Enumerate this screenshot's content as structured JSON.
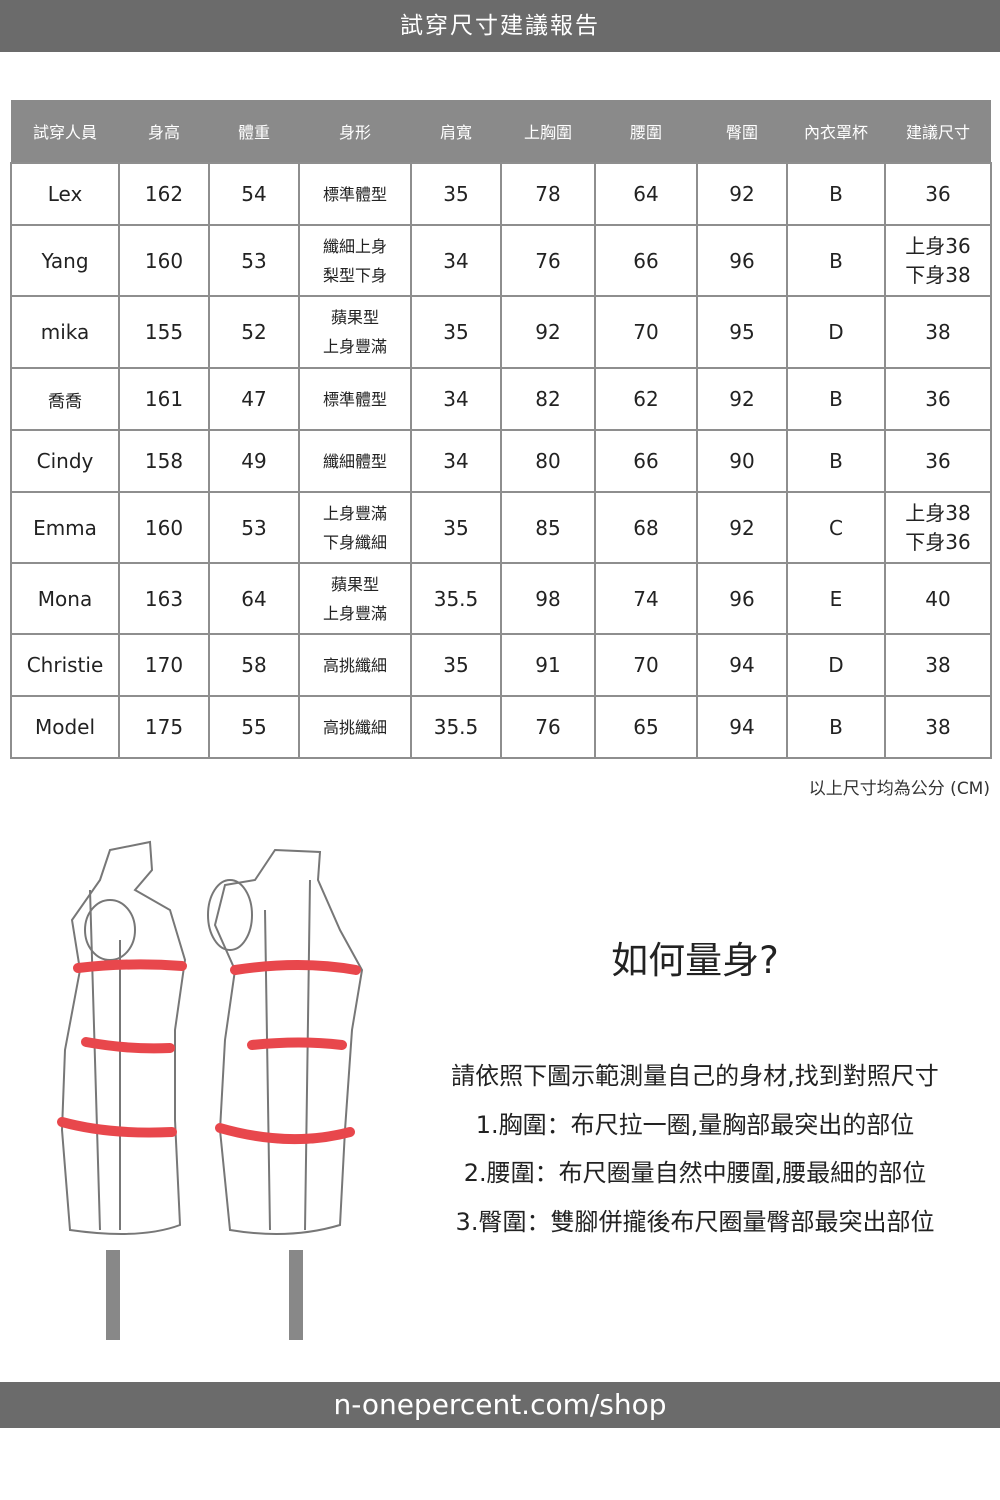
{
  "header": {
    "title": "試穿尺寸建議報告"
  },
  "table": {
    "columns": [
      "試穿人員",
      "身高",
      "體重",
      "身形",
      "肩寬",
      "上胸圍",
      "腰圍",
      "臀圍",
      "內衣罩杯",
      "建議尺寸"
    ],
    "rows": [
      {
        "name": "Lex",
        "height": "162",
        "weight": "54",
        "shape": [
          "標準體型"
        ],
        "shoulder": "35",
        "chest": "78",
        "waist": "64",
        "hip": "92",
        "cup": "B",
        "size": [
          "36"
        ]
      },
      {
        "name": "Yang",
        "height": "160",
        "weight": "53",
        "shape": [
          "纖細上身",
          "梨型下身"
        ],
        "shoulder": "34",
        "chest": "76",
        "waist": "66",
        "hip": "96",
        "cup": "B",
        "size": [
          "上身36",
          "下身38"
        ]
      },
      {
        "name": "mika",
        "height": "155",
        "weight": "52",
        "shape": [
          "蘋果型",
          "上身豐滿"
        ],
        "shoulder": "35",
        "chest": "92",
        "waist": "70",
        "hip": "95",
        "cup": "D",
        "size": [
          "38"
        ]
      },
      {
        "name": "喬喬",
        "height": "161",
        "weight": "47",
        "shape": [
          "標準體型"
        ],
        "shoulder": "34",
        "chest": "82",
        "waist": "62",
        "hip": "92",
        "cup": "B",
        "size": [
          "36"
        ]
      },
      {
        "name": "Cindy",
        "height": "158",
        "weight": "49",
        "shape": [
          "纖細體型"
        ],
        "shoulder": "34",
        "chest": "80",
        "waist": "66",
        "hip": "90",
        "cup": "B",
        "size": [
          "36"
        ]
      },
      {
        "name": "Emma",
        "height": "160",
        "weight": "53",
        "shape": [
          "上身豐滿",
          "下身纖細"
        ],
        "shoulder": "35",
        "chest": "85",
        "waist": "68",
        "hip": "92",
        "cup": "C",
        "size": [
          "上身38",
          "下身36"
        ]
      },
      {
        "name": "Mona",
        "height": "163",
        "weight": "64",
        "shape": [
          "蘋果型",
          "上身豐滿"
        ],
        "shoulder": "35.5",
        "chest": "98",
        "waist": "74",
        "hip": "96",
        "cup": "E",
        "size": [
          "40"
        ]
      },
      {
        "name": "Christie",
        "height": "170",
        "weight": "58",
        "shape": [
          "高挑纖細"
        ],
        "shoulder": "35",
        "chest": "91",
        "waist": "70",
        "hip": "94",
        "cup": "D",
        "size": [
          "38"
        ]
      },
      {
        "name": "Model",
        "height": "175",
        "weight": "55",
        "shape": [
          "高挑纖細"
        ],
        "shoulder": "35.5",
        "chest": "76",
        "waist": "65",
        "hip": "94",
        "cup": "B",
        "size": [
          "38"
        ]
      }
    ],
    "note": "以上尺寸均為公分 (CM)"
  },
  "guide": {
    "title": "如何量身?",
    "lines": [
      "請依照下圖示範測量自己的身材,找到對照尺寸",
      "1.胸圍：布尺拉一圈,量胸部最突出的部位",
      "2.腰圍：布尺圈量自然中腰圍,腰最細的部位",
      "3.臀圍：雙腳併攏後布尺圈量臀部最突出部位"
    ]
  },
  "footer": {
    "url": "n-onepercent.com/shop"
  },
  "colors": {
    "bar": "#6b6b6b",
    "header": "#8a8a8a",
    "measure_line": "#e8474c"
  }
}
